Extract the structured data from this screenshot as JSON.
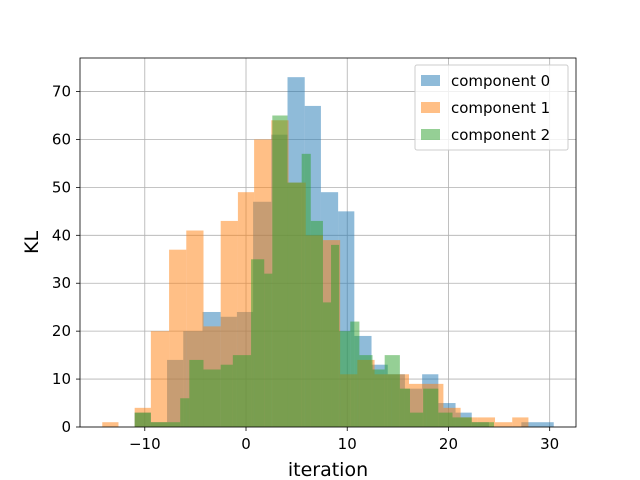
{
  "chart_data": {
    "type": "histogram",
    "xlabel": "iteration",
    "ylabel": "KL",
    "xlim": [
      -16.4,
      32.6
    ],
    "ylim": [
      0,
      77
    ],
    "xticks": [
      -10,
      0,
      10,
      20,
      30
    ],
    "yticks": [
      0,
      10,
      20,
      30,
      40,
      50,
      60,
      70
    ],
    "grid": true,
    "legend_position": "top-right",
    "alpha": 0.5,
    "series": [
      {
        "name": "component 0",
        "color": "#1f77b4",
        "bins": [
          {
            "x0": -11,
            "x1": -9.4,
            "count": 3
          },
          {
            "x0": -9.4,
            "x1": -7.8,
            "count": 1
          },
          {
            "x0": -7.8,
            "x1": -6.2,
            "count": 14
          },
          {
            "x0": -6.2,
            "x1": -4.3,
            "count": 20
          },
          {
            "x0": -4.3,
            "x1": -2.5,
            "count": 24
          },
          {
            "x0": -2.5,
            "x1": -0.9,
            "count": 23
          },
          {
            "x0": -0.9,
            "x1": 0.7,
            "count": 24
          },
          {
            "x0": 0.7,
            "x1": 2.5,
            "count": 47
          },
          {
            "x0": 2.5,
            "x1": 4.1,
            "count": 61
          },
          {
            "x0": 4.1,
            "x1": 5.8,
            "count": 73
          },
          {
            "x0": 5.8,
            "x1": 7.4,
            "count": 67
          },
          {
            "x0": 7.4,
            "x1": 9.1,
            "count": 49
          },
          {
            "x0": 9.1,
            "x1": 10.7,
            "count": 45
          },
          {
            "x0": 10.7,
            "x1": 12.4,
            "count": 19
          },
          {
            "x0": 12.4,
            "x1": 14.0,
            "count": 13
          },
          {
            "x0": 14.0,
            "x1": 15.7,
            "count": 11
          },
          {
            "x0": 15.7,
            "x1": 17.4,
            "count": 8
          },
          {
            "x0": 17.4,
            "x1": 19.0,
            "count": 11
          },
          {
            "x0": 19.0,
            "x1": 20.7,
            "count": 5
          },
          {
            "x0": 20.7,
            "x1": 22.3,
            "count": 3
          },
          {
            "x0": 22.3,
            "x1": 24.0,
            "count": 1
          },
          {
            "x0": 24.0,
            "x1": 27.2,
            "count": 0
          },
          {
            "x0": 27.2,
            "x1": 30.4,
            "count": 1
          }
        ]
      },
      {
        "name": "component 1",
        "color": "#ff7f0e",
        "bins": [
          {
            "x0": -14.2,
            "x1": -12.6,
            "count": 1
          },
          {
            "x0": -12.6,
            "x1": -11,
            "count": 0
          },
          {
            "x0": -11,
            "x1": -9.4,
            "count": 4
          },
          {
            "x0": -9.4,
            "x1": -7.6,
            "count": 20
          },
          {
            "x0": -7.6,
            "x1": -5.9,
            "count": 37
          },
          {
            "x0": -5.9,
            "x1": -4.2,
            "count": 41
          },
          {
            "x0": -4.2,
            "x1": -2.5,
            "count": 21
          },
          {
            "x0": -2.5,
            "x1": -0.8,
            "count": 43
          },
          {
            "x0": -0.8,
            "x1": 0.8,
            "count": 49
          },
          {
            "x0": 0.8,
            "x1": 2.5,
            "count": 60
          },
          {
            "x0": 2.5,
            "x1": 4.2,
            "count": 64
          },
          {
            "x0": 4.2,
            "x1": 5.9,
            "count": 51
          },
          {
            "x0": 5.9,
            "x1": 7.6,
            "count": 40
          },
          {
            "x0": 7.6,
            "x1": 9.3,
            "count": 39
          },
          {
            "x0": 9.3,
            "x1": 11.0,
            "count": 11
          },
          {
            "x0": 11.0,
            "x1": 12.7,
            "count": 14
          },
          {
            "x0": 12.7,
            "x1": 14.4,
            "count": 11
          },
          {
            "x0": 14.4,
            "x1": 16.1,
            "count": 11
          },
          {
            "x0": 16.1,
            "x1": 17.8,
            "count": 9
          },
          {
            "x0": 17.8,
            "x1": 19.5,
            "count": 9
          },
          {
            "x0": 19.5,
            "x1": 21.2,
            "count": 4
          },
          {
            "x0": 21.2,
            "x1": 22.9,
            "count": 2
          },
          {
            "x0": 22.9,
            "x1": 24.6,
            "count": 2
          },
          {
            "x0": 24.6,
            "x1": 26.3,
            "count": 1
          },
          {
            "x0": 26.3,
            "x1": 27.9,
            "count": 2
          }
        ]
      },
      {
        "name": "component 2",
        "color": "#2ca02c",
        "bins": [
          {
            "x0": -11,
            "x1": -9.4,
            "count": 3
          },
          {
            "x0": -9.4,
            "x1": -7.8,
            "count": 1
          },
          {
            "x0": -7.8,
            "x1": -6.5,
            "count": 1
          },
          {
            "x0": -6.5,
            "x1": -5.6,
            "count": 6
          },
          {
            "x0": -5.6,
            "x1": -4.2,
            "count": 14
          },
          {
            "x0": -4.2,
            "x1": -2.5,
            "count": 12
          },
          {
            "x0": -2.5,
            "x1": -1.3,
            "count": 13
          },
          {
            "x0": -1.3,
            "x1": 0.5,
            "count": 15
          },
          {
            "x0": 0.5,
            "x1": 1.8,
            "count": 35
          },
          {
            "x0": 1.8,
            "x1": 2.6,
            "count": 32
          },
          {
            "x0": 2.6,
            "x1": 4.1,
            "count": 65
          },
          {
            "x0": 4.1,
            "x1": 5.5,
            "count": 51
          },
          {
            "x0": 5.5,
            "x1": 6.4,
            "count": 57
          },
          {
            "x0": 6.4,
            "x1": 7.6,
            "count": 43
          },
          {
            "x0": 7.6,
            "x1": 8.4,
            "count": 26
          },
          {
            "x0": 8.4,
            "x1": 9.2,
            "count": 38
          },
          {
            "x0": 9.2,
            "x1": 10.3,
            "count": 20
          },
          {
            "x0": 10.3,
            "x1": 11.2,
            "count": 22
          },
          {
            "x0": 11.2,
            "x1": 12.5,
            "count": 15
          },
          {
            "x0": 12.5,
            "x1": 13.7,
            "count": 12
          },
          {
            "x0": 13.7,
            "x1": 15.2,
            "count": 15
          },
          {
            "x0": 15.2,
            "x1": 16.2,
            "count": 8
          },
          {
            "x0": 16.2,
            "x1": 17.5,
            "count": 3
          },
          {
            "x0": 17.5,
            "x1": 19.0,
            "count": 8
          },
          {
            "x0": 19.0,
            "x1": 20.4,
            "count": 3
          },
          {
            "x0": 20.4,
            "x1": 22.3,
            "count": 2
          },
          {
            "x0": 22.3,
            "x1": 24.5,
            "count": 1
          }
        ]
      }
    ]
  }
}
